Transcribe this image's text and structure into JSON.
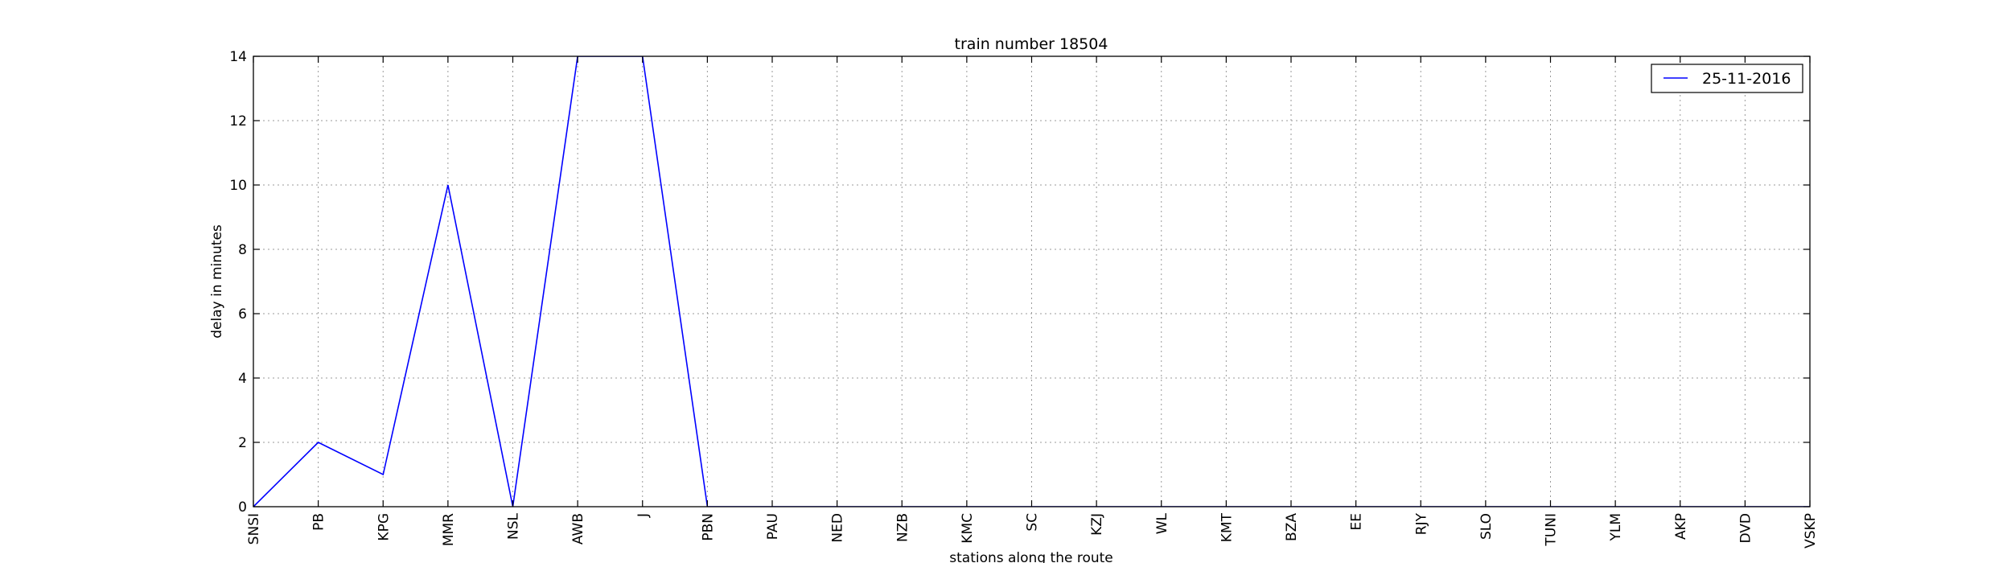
{
  "chart_data": {
    "type": "line",
    "title": "train number 18504",
    "xlabel": "stations along the route",
    "ylabel": "delay in minutes",
    "categories": [
      "SNSI",
      "PB",
      "KPG",
      "MMR",
      "NSL",
      "AWB",
      "J",
      "PBN",
      "PAU",
      "NED",
      "NZB",
      "KMC",
      "SC",
      "KZJ",
      "WL",
      "KMT",
      "BZA",
      "EE",
      "RJY",
      "SLO",
      "TUNI",
      "YLM",
      "AKP",
      "DVD",
      "VSKP"
    ],
    "series": [
      {
        "name": "25-11-2016",
        "color": "#0000ff",
        "values": [
          0,
          2,
          1,
          10,
          0,
          14,
          14,
          0,
          0,
          0,
          0,
          0,
          0,
          0,
          0,
          0,
          0,
          0,
          0,
          0,
          0,
          0,
          0,
          0,
          0
        ]
      }
    ],
    "ylim": [
      0,
      14
    ],
    "yticks": [
      "0",
      "2",
      "4",
      "6",
      "8",
      "10",
      "12",
      "14"
    ],
    "grid": true,
    "legend_position": "top-right"
  }
}
